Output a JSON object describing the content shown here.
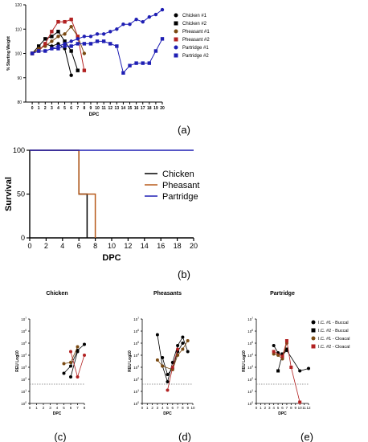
{
  "panel_labels": [
    "(a)",
    "(b)",
    "(c)",
    "(d)",
    "(e)"
  ],
  "chart_data": [
    {
      "type": "line",
      "panel": "(a)",
      "xlabel": "DPC",
      "ylabel": "% Starting Weight",
      "xlim": [
        -1,
        20
      ],
      "ylim": [
        80,
        120
      ],
      "xticks": [
        "0",
        "1",
        "2",
        "3",
        "4",
        "5",
        "6",
        "7",
        "8",
        "9",
        "10",
        "11",
        "12",
        "13",
        "14",
        "15",
        "16",
        "17",
        "18",
        "19",
        "20"
      ],
      "yticks": [
        "80",
        "90",
        "100",
        "110",
        "120"
      ],
      "legend_position": "right",
      "series": [
        {
          "name": "Chicken #1",
          "color": "#000000",
          "marker": "circle",
          "x": [
            0,
            1,
            2,
            3,
            4,
            5,
            6
          ],
          "y": [
            100,
            101,
            104,
            103,
            104,
            102,
            91
          ]
        },
        {
          "name": "Chicken #2",
          "color": "#000000",
          "marker": "square",
          "x": [
            0,
            1,
            2,
            3,
            4,
            5,
            6,
            7
          ],
          "y": [
            100,
            103,
            106,
            107,
            109,
            105,
            101,
            93
          ]
        },
        {
          "name": "Pheasant #1",
          "color": "#7a4a12",
          "marker": "circle",
          "x": [
            0,
            1,
            2,
            3,
            4,
            5,
            6,
            7,
            8
          ],
          "y": [
            100,
            102,
            103,
            105,
            107,
            108,
            111,
            107,
            100
          ]
        },
        {
          "name": "Pheasant #2",
          "color": "#b22222",
          "marker": "square",
          "x": [
            0,
            1,
            2,
            3,
            4,
            5,
            6,
            7,
            8
          ],
          "y": [
            100,
            101,
            104,
            109,
            113,
            113,
            114,
            107,
            93
          ]
        },
        {
          "name": "Partridge #1",
          "color": "#1f1fb4",
          "marker": "circle",
          "x": [
            0,
            1,
            2,
            3,
            4,
            5,
            6,
            7,
            8,
            9,
            10,
            11,
            12,
            13,
            14,
            15,
            16,
            17,
            18,
            19,
            20
          ],
          "y": [
            100,
            101,
            101,
            102,
            103,
            104,
            105,
            106,
            107,
            107,
            108,
            108,
            109,
            110,
            112,
            112,
            114,
            113,
            115,
            116,
            118
          ]
        },
        {
          "name": "Partridge #2",
          "color": "#1f1fb4",
          "marker": "square",
          "x": [
            0,
            1,
            2,
            3,
            4,
            5,
            6,
            7,
            8,
            9,
            10,
            11,
            12,
            13,
            14,
            15,
            16,
            17,
            18,
            19,
            20
          ],
          "y": [
            100,
            101,
            101,
            102,
            102,
            103,
            103,
            104,
            104,
            104,
            105,
            105,
            104,
            103,
            92,
            95,
            96,
            96,
            96,
            101,
            106
          ]
        }
      ]
    },
    {
      "type": "line",
      "panel": "(b)",
      "xlabel": "DPC",
      "ylabel": "Survival",
      "xlim": [
        0,
        20
      ],
      "ylim": [
        0,
        100
      ],
      "xticks": [
        "0",
        "2",
        "4",
        "6",
        "8",
        "10",
        "12",
        "14",
        "16",
        "18",
        "20"
      ],
      "yticks": [
        "0",
        "50",
        "100"
      ],
      "legend_position": "right",
      "series": [
        {
          "name": "Chicken",
          "color": "#000000",
          "x": [
            0,
            6,
            6,
            7,
            7
          ],
          "y": [
            100,
            100,
            50,
            50,
            0
          ]
        },
        {
          "name": "Pheasant",
          "color": "#b85a1a",
          "x": [
            0,
            6,
            6,
            8,
            8
          ],
          "y": [
            100,
            100,
            50,
            50,
            0
          ]
        },
        {
          "name": "Partridge",
          "color": "#1f1fb4",
          "x": [
            0,
            20
          ],
          "y": [
            100,
            100
          ]
        }
      ]
    },
    {
      "type": "line",
      "panel": "(c)",
      "title": "Chicken",
      "xlabel": "DPC",
      "ylabel": "REU Log10",
      "xlim": [
        0,
        8
      ],
      "ylim_log_exp": [
        0,
        7
      ],
      "xticks": [
        "0",
        "1",
        "2",
        "3",
        "4",
        "5",
        "6",
        "7",
        "8"
      ],
      "ytick_exponents": [
        0,
        1,
        2,
        3,
        4,
        5,
        6,
        7
      ],
      "threshold_log": 1.6,
      "series": [
        {
          "name": "I.C. #1 - Buccal",
          "color": "#000000",
          "x": [
            5,
            6,
            7,
            8
          ],
          "y_log": [
            2.5,
            3.1,
            4.4,
            4.9
          ]
        },
        {
          "name": "I.C. #2 - Buccal",
          "color": "#000000",
          "x": [
            6,
            7
          ],
          "y_log": [
            2.2,
            4.3
          ]
        },
        {
          "name": "I.C. #1 - Cloacal",
          "color": "#7a4a12",
          "x": [
            5,
            6,
            7
          ],
          "y_log": [
            3.3,
            3.4,
            4.7
          ]
        },
        {
          "name": "I.C. #2 - Cloacal",
          "color": "#b22222",
          "x": [
            6,
            7,
            8
          ],
          "y_log": [
            4.3,
            2.2,
            4.0
          ]
        }
      ]
    },
    {
      "type": "line",
      "panel": "(d)",
      "title": "Pheasants",
      "xlabel": "DPC",
      "ylabel": "REU Log10",
      "xlim": [
        0,
        10
      ],
      "ylim_log_exp": [
        0,
        7
      ],
      "xticks": [
        "0",
        "1",
        "2",
        "3",
        "4",
        "5",
        "6",
        "7",
        "8",
        "9",
        "10"
      ],
      "ytick_exponents": [
        0,
        1,
        2,
        3,
        4,
        5,
        6,
        7
      ],
      "threshold_log": 1.6,
      "series": [
        {
          "name": "I.C. #1 - Buccal",
          "color": "#000000",
          "x": [
            3,
            4,
            5,
            6,
            7,
            8,
            9
          ],
          "y_log": [
            5.7,
            3.1,
            1.8,
            3.4,
            4.8,
            5.5,
            4.3
          ]
        },
        {
          "name": "I.C. #2 - Buccal",
          "color": "#000000",
          "x": [
            4,
            5,
            6,
            7,
            8
          ],
          "y_log": [
            3.8,
            2.4,
            2.9,
            4.3,
            5.0
          ]
        },
        {
          "name": "I.C. #1 - Cloacal",
          "color": "#7a4a12",
          "x": [
            3,
            4,
            6,
            7,
            8,
            9
          ],
          "y_log": [
            3.6,
            3.1,
            2.8,
            4.0,
            4.5,
            5.2
          ]
        },
        {
          "name": "I.C. #2 - Cloacal",
          "color": "#b22222",
          "x": [
            5,
            6,
            7
          ],
          "y_log": [
            1.1,
            3.0,
            4.5
          ]
        }
      ]
    },
    {
      "type": "line",
      "panel": "(e)",
      "title": "Partridge",
      "xlabel": "DPC",
      "ylabel": "REU Log10",
      "xlim": [
        0,
        12
      ],
      "ylim_log_exp": [
        0,
        7
      ],
      "xticks": [
        "0",
        "1",
        "2",
        "3",
        "4",
        "5",
        "6",
        "7",
        "8",
        "9",
        "10",
        "11",
        "12"
      ],
      "ytick_exponents": [
        0,
        1,
        2,
        3,
        4,
        5,
        6,
        7
      ],
      "threshold_log": 1.6,
      "legend_position": "top-right",
      "series": [
        {
          "name": "I.C. #1 - Buccal",
          "color": "#000000",
          "marker": "circle",
          "x": [
            4,
            5,
            6,
            7,
            10,
            12
          ],
          "y_log": [
            4.8,
            4.2,
            4.0,
            4.4,
            2.7,
            2.9
          ]
        },
        {
          "name": "I.C. #2 - Buccal",
          "color": "#000000",
          "marker": "square",
          "x": [
            5,
            6,
            7
          ],
          "y_log": [
            2.7,
            4.1,
            4.5
          ]
        },
        {
          "name": "I.C. #1 - Cloacal",
          "color": "#7a4a12",
          "marker": "circle",
          "x": [
            4,
            5,
            6,
            7
          ],
          "y_log": [
            4.1,
            4.0,
            3.7,
            5.0
          ]
        },
        {
          "name": "I.C. #2 - Cloacal",
          "color": "#b22222",
          "marker": "square",
          "x": [
            4,
            6,
            7,
            8,
            10
          ],
          "y_log": [
            4.3,
            3.9,
            5.2,
            3.0,
            0.1
          ]
        }
      ]
    }
  ]
}
